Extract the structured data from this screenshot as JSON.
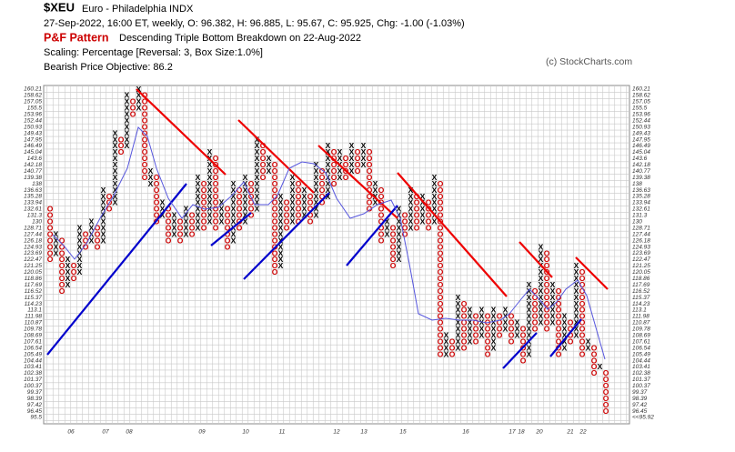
{
  "chart_data": {
    "type": "point_and_figure",
    "symbol": "$XEU",
    "name": "Euro - Philadelphia  INDX",
    "quote": "27-Sep-2022, 16:00 ET, weekly, O: 96.382, H: 96.885, L: 95.67, C: 95.925, Chg: -1.00 (-1.03%)",
    "pattern_label": "P&F Pattern",
    "pattern": "Descending Triple Bottom Breakdown on 22-Aug-2022",
    "scaling": "Scaling: Percentage [Reversal: 3, Box Size:1.0%]",
    "objective": "Bearish Price Objective: 86.2",
    "copyright": "(c) StockCharts.com",
    "log_scale": true,
    "grid": true,
    "x_color": "#000000",
    "o_color": "#cc0000",
    "ylim": [
      95.5,
      160.21
    ],
    "yticks": [
      95.5,
      96.45,
      97.42,
      98.39,
      99.37,
      100.37,
      101.37,
      102.38,
      103.41,
      104.44,
      105.49,
      106.54,
      107.61,
      108.69,
      109.78,
      110.87,
      111.98,
      113.1,
      114.23,
      115.37,
      116.52,
      117.69,
      118.86,
      120.05,
      121.25,
      122.47,
      123.69,
      124.93,
      126.18,
      127.44,
      128.71,
      130.0,
      131.3,
      132.61,
      133.94,
      135.28,
      136.63,
      138.0,
      139.38,
      140.77,
      142.18,
      143.6,
      145.04,
      146.49,
      147.95,
      149.43,
      150.93,
      152.44,
      153.96,
      155.5,
      157.05,
      158.62,
      160.21
    ],
    "last_price_label": "<<95.92",
    "x_labels": [
      "06",
      "07",
      "08",
      "09",
      "10",
      "11",
      "12",
      "13",
      "15",
      "16",
      "17",
      "18",
      "20",
      "21",
      "22"
    ],
    "columns": [
      [
        "O",
        132.61,
        122.47
      ],
      [
        "X",
        127.44,
        123.69
      ],
      [
        "O",
        126.18,
        116.52
      ],
      [
        "X",
        122.47,
        117.69
      ],
      [
        "O",
        121.25,
        118.86
      ],
      [
        "X",
        128.71,
        120.05
      ],
      [
        "O",
        127.44,
        124.93
      ],
      [
        "X",
        130.0,
        126.18
      ],
      [
        "O",
        128.71,
        124.93
      ],
      [
        "X",
        136.63,
        126.18
      ],
      [
        "O",
        135.28,
        132.61
      ],
      [
        "X",
        149.43,
        133.94
      ],
      [
        "O",
        147.95,
        145.04
      ],
      [
        "X",
        158.62,
        146.49
      ],
      [
        "O",
        157.05,
        153.96
      ],
      [
        "X",
        160.21,
        155.5
      ],
      [
        "O",
        158.62,
        139.38
      ],
      [
        "X",
        140.77,
        138.0
      ],
      [
        "O",
        139.38,
        130.0
      ],
      [
        "X",
        133.94,
        131.3
      ],
      [
        "O",
        132.61,
        126.18
      ],
      [
        "X",
        131.3,
        127.44
      ],
      [
        "O",
        130.0,
        126.18
      ],
      [
        "X",
        132.61,
        127.44
      ],
      [
        "O",
        131.3,
        127.44
      ],
      [
        "X",
        139.38,
        128.71
      ],
      [
        "O",
        138.0,
        128.71
      ],
      [
        "X",
        145.04,
        130.0
      ],
      [
        "O",
        143.6,
        128.71
      ],
      [
        "X",
        133.94,
        130.0
      ],
      [
        "O",
        132.61,
        124.93
      ],
      [
        "X",
        138.0,
        126.18
      ],
      [
        "O",
        136.63,
        128.71
      ],
      [
        "X",
        139.38,
        130.0
      ],
      [
        "O",
        138.0,
        131.3
      ],
      [
        "X",
        147.95,
        132.61
      ],
      [
        "O",
        146.49,
        139.38
      ],
      [
        "X",
        143.6,
        140.77
      ],
      [
        "O",
        142.18,
        120.05
      ],
      [
        "X",
        135.28,
        121.25
      ],
      [
        "O",
        133.94,
        128.71
      ],
      [
        "X",
        139.38,
        130.0
      ],
      [
        "O",
        138.0,
        130.0
      ],
      [
        "X",
        136.63,
        131.3
      ],
      [
        "O",
        135.28,
        130.0
      ],
      [
        "X",
        142.18,
        131.3
      ],
      [
        "O",
        140.77,
        133.94
      ],
      [
        "X",
        146.49,
        135.28
      ],
      [
        "O",
        145.04,
        138.0
      ],
      [
        "X",
        145.04,
        139.38
      ],
      [
        "O",
        143.6,
        139.38
      ],
      [
        "X",
        146.49,
        140.77
      ],
      [
        "O",
        145.04,
        140.77
      ],
      [
        "X",
        146.49,
        142.18
      ],
      [
        "O",
        145.04,
        132.61
      ],
      [
        "X",
        138.0,
        133.94
      ],
      [
        "O",
        136.63,
        126.18
      ],
      [
        "X",
        130.0,
        127.44
      ],
      [
        "O",
        128.71,
        121.25
      ],
      [
        "X",
        132.61,
        122.47
      ],
      [
        "O",
        131.3,
        127.44
      ],
      [
        "X",
        136.63,
        128.71
      ],
      [
        "O",
        135.28,
        128.71
      ],
      [
        "X",
        135.28,
        130.0
      ],
      [
        "O",
        133.94,
        128.71
      ],
      [
        "X",
        139.38,
        130.0
      ],
      [
        "O",
        138.0,
        105.49
      ],
      [
        "X",
        108.69,
        105.49
      ],
      [
        "O",
        107.61,
        105.49
      ],
      [
        "X",
        115.37,
        106.54
      ],
      [
        "O",
        114.23,
        106.54
      ],
      [
        "X",
        113.1,
        107.61
      ],
      [
        "O",
        111.98,
        107.61
      ],
      [
        "X",
        113.1,
        108.69
      ],
      [
        "O",
        111.98,
        105.49
      ],
      [
        "X",
        113.1,
        106.54
      ],
      [
        "O",
        111.98,
        108.69
      ],
      [
        "X",
        113.1,
        109.78
      ],
      [
        "O",
        111.98,
        107.61
      ],
      [
        "X",
        110.87,
        108.69
      ],
      [
        "O",
        109.78,
        104.44
      ],
      [
        "X",
        117.69,
        105.49
      ],
      [
        "O",
        116.52,
        109.78
      ],
      [
        "X",
        124.93,
        110.87
      ],
      [
        "O",
        123.69,
        109.78
      ],
      [
        "X",
        117.69,
        110.87
      ],
      [
        "O",
        116.52,
        105.49
      ],
      [
        "X",
        111.98,
        106.54
      ],
      [
        "O",
        110.87,
        107.61
      ],
      [
        "X",
        121.25,
        108.69
      ],
      [
        "O",
        120.05,
        105.49
      ],
      [
        "X",
        107.61,
        106.54
      ],
      [
        "O",
        106.54,
        102.38
      ],
      [
        "X",
        103.41,
        103.41
      ],
      [
        "O",
        102.38,
        96.45
      ]
    ]
  }
}
